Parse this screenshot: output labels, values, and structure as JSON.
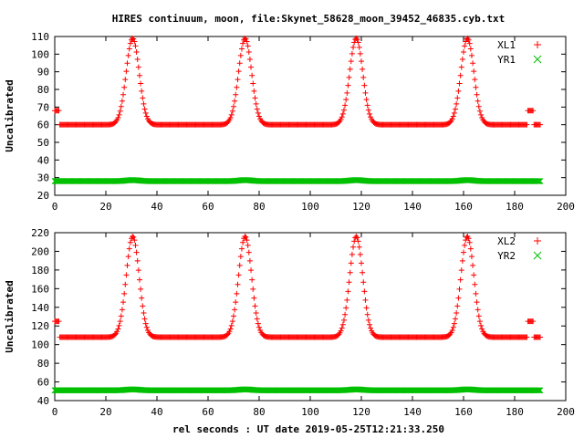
{
  "figure": {
    "title": "HIRES continuum, moon, file:Skynet_58628_moon_39452_46835.cyb.txt",
    "xlabel": "rel seconds : UT date 2019-05-25T12:21:33.250"
  },
  "chart_data": [
    {
      "type": "scatter",
      "ylabel": "Uncalibrated",
      "xlim": [
        0,
        200
      ],
      "ylim": [
        20,
        110
      ],
      "xticks": [
        "0",
        "20",
        "40",
        "60",
        "80",
        "100",
        "120",
        "140",
        "160",
        "180",
        "200"
      ],
      "yticks": [
        "20",
        "30",
        "40",
        "50",
        "60",
        "70",
        "80",
        "90",
        "100",
        "110"
      ],
      "legend": "top-right",
      "grid": false,
      "peaks": [
        30.5,
        74.5,
        118,
        161.5
      ],
      "series": [
        {
          "name": "XL1",
          "marker": "+",
          "color": "#ff0000",
          "baseline": 60,
          "peak": 109,
          "edge_high": 68,
          "x_start": 0,
          "x_end": 190
        },
        {
          "name": "YR1",
          "marker": "x",
          "color": "#00c000",
          "baseline": 28,
          "peak": 28.6,
          "edge_high": 28,
          "x_start": 0,
          "x_end": 190
        }
      ]
    },
    {
      "type": "scatter",
      "ylabel": "Uncalibrated",
      "xlim": [
        0,
        200
      ],
      "ylim": [
        40,
        220
      ],
      "xticks": [
        "0",
        "20",
        "40",
        "60",
        "80",
        "100",
        "120",
        "140",
        "160",
        "180",
        "200"
      ],
      "yticks": [
        "40",
        "60",
        "80",
        "100",
        "120",
        "140",
        "160",
        "180",
        "200",
        "220"
      ],
      "legend": "top-right",
      "grid": false,
      "peaks": [
        30.5,
        74.5,
        118,
        161.5
      ],
      "series": [
        {
          "name": "XL2",
          "marker": "+",
          "color": "#ff0000",
          "baseline": 108,
          "peak": 216,
          "edge_high": 125,
          "x_start": 0,
          "x_end": 190
        },
        {
          "name": "YR2",
          "marker": "x",
          "color": "#00c000",
          "baseline": 51,
          "peak": 52,
          "edge_high": 51,
          "x_start": 0,
          "x_end": 190
        }
      ]
    }
  ]
}
